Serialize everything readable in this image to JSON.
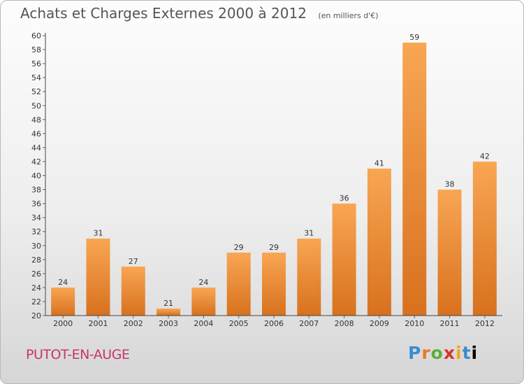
{
  "header": {
    "title": "Achats et Charges Externes 2000 à 2012",
    "unit": "(en milliers d'€)"
  },
  "footer": {
    "commune": "PUTOT-EN-AUGE",
    "logo_letters": [
      "P",
      "r",
      "o",
      "x",
      "i",
      "t",
      "i"
    ]
  },
  "colors": {
    "bar_top": "#f8a653",
    "bar_bottom": "#d8711e",
    "axis": "#444444",
    "grid_tick": "#666666",
    "commune": "#c8346f"
  },
  "chart_data": {
    "type": "bar",
    "title": "Achats et Charges Externes 2000 à 2012",
    "subtitle": "(en milliers d'€)",
    "categories": [
      "2000",
      "2001",
      "2002",
      "2003",
      "2004",
      "2005",
      "2006",
      "2007",
      "2008",
      "2009",
      "2010",
      "2011",
      "2012"
    ],
    "values": [
      24,
      31,
      27,
      21,
      24,
      29,
      29,
      31,
      36,
      41,
      59,
      38,
      42
    ],
    "xlabel": "",
    "ylabel": "",
    "ylim": [
      20,
      60
    ],
    "ytick_step": 2,
    "grid": false,
    "legend": "none"
  }
}
